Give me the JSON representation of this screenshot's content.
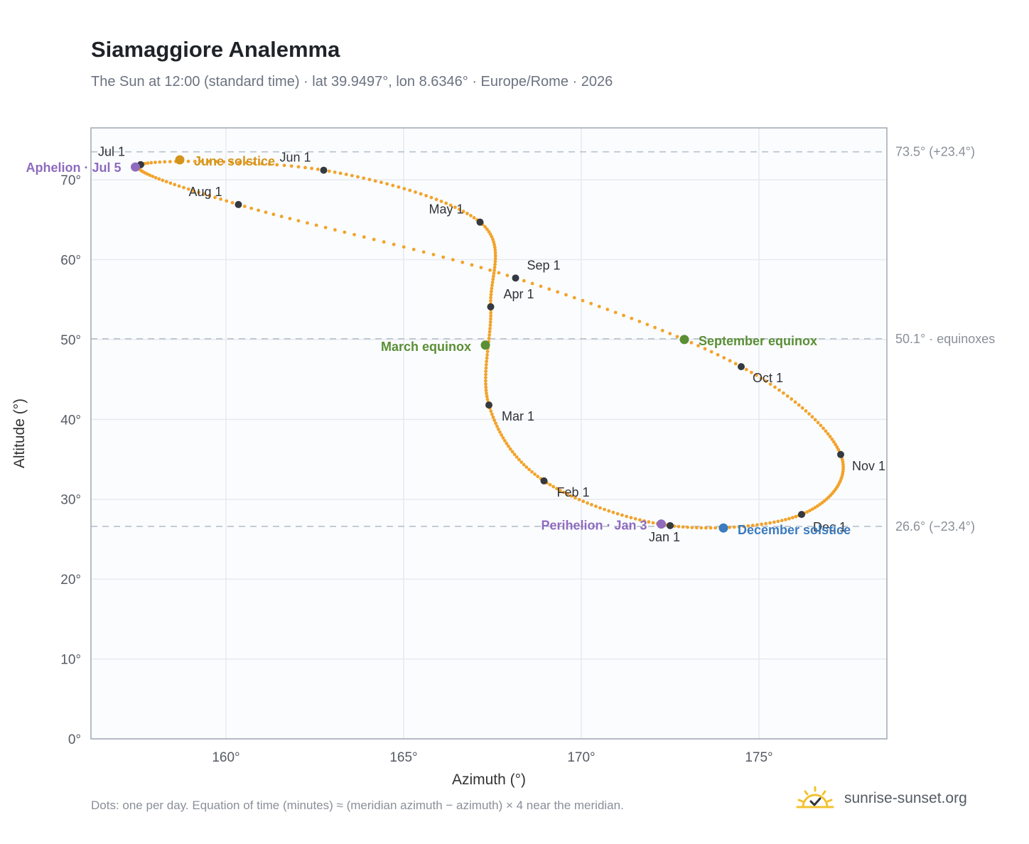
{
  "title": "Siamaggiore Analemma",
  "subtitle": "The Sun at 12:00 (standard time) · lat 39.9497°, lon 8.6346° · Europe/Rome · 2026",
  "footnote": "Dots: one per day. Equation of time (minutes) ≈ (meridian azimuth − azimuth) × 4 near the meridian.",
  "brand": {
    "text": "sunrise-sunset.org",
    "icon": "sun-check-icon",
    "color": "#f2c230"
  },
  "chart_data": {
    "type": "scatter",
    "xlabel": "Azimuth (°)",
    "ylabel": "Altitude (°)",
    "xlim": [
      156.2,
      178.6
    ],
    "ylim": [
      0,
      76.5
    ],
    "x_ticks": [
      160,
      165,
      170,
      175
    ],
    "x_tick_labels": [
      "160°",
      "165°",
      "170°",
      "175°"
    ],
    "y_ticks": [
      0,
      10,
      20,
      30,
      40,
      50,
      60,
      70
    ],
    "y_tick_labels": [
      "0°",
      "10°",
      "20°",
      "30°",
      "40°",
      "50°",
      "60°",
      "70°"
    ],
    "grid": true,
    "colors": {
      "curve": "#f2a32b",
      "month_marker": "#343a40",
      "perihelion_aphelion": "#8e6bbf",
      "june_solstice": "#d4941c",
      "equinox": "#5a8f35",
      "december_solstice": "#3b7bbf",
      "reference_line": "#b7c1cc",
      "plot_background": "#fbfcfe",
      "frame": "#a0a8b4"
    },
    "reference_lines": [
      {
        "y": 73.5,
        "label": "73.5° (+23.4°)"
      },
      {
        "y": 50.1,
        "label": "50.1° · equinoxes"
      },
      {
        "y": 26.6,
        "label": "26.6° (−23.4°)"
      }
    ],
    "monthly_points": [
      {
        "label": "Jan 1",
        "x": 172.5,
        "y": 26.7
      },
      {
        "label": "Feb 1",
        "x": 168.95,
        "y": 32.3
      },
      {
        "label": "Mar 1",
        "x": 167.4,
        "y": 41.8
      },
      {
        "label": "Apr 1",
        "x": 167.45,
        "y": 54.1
      },
      {
        "label": "May 1",
        "x": 167.15,
        "y": 64.7
      },
      {
        "label": "Jun 1",
        "x": 162.75,
        "y": 71.2
      },
      {
        "label": "Jul 1",
        "x": 157.6,
        "y": 71.9
      },
      {
        "label": "Aug 1",
        "x": 160.35,
        "y": 66.9
      },
      {
        "label": "Sep 1",
        "x": 168.15,
        "y": 57.7
      },
      {
        "label": "Oct 1",
        "x": 174.5,
        "y": 46.6
      },
      {
        "label": "Nov 1",
        "x": 177.3,
        "y": 35.6
      },
      {
        "label": "Dec 1",
        "x": 176.2,
        "y": 28.1
      }
    ],
    "events": [
      {
        "label": "Perihelion · Jan 3",
        "x": 172.25,
        "y": 26.9,
        "kind": "perihelion_aphelion"
      },
      {
        "label": "March equinox",
        "x": 167.3,
        "y": 49.3,
        "kind": "equinox"
      },
      {
        "label": "June solstice",
        "x": 158.7,
        "y": 72.5,
        "kind": "june_solstice"
      },
      {
        "label": "Aphelion · Jul 5",
        "x": 157.45,
        "y": 71.6,
        "kind": "perihelion_aphelion"
      },
      {
        "label": "September equinox",
        "x": 172.9,
        "y": 50.0,
        "kind": "equinox"
      },
      {
        "label": "December solstice",
        "x": 174.0,
        "y": 26.4,
        "kind": "december_solstice"
      }
    ]
  }
}
